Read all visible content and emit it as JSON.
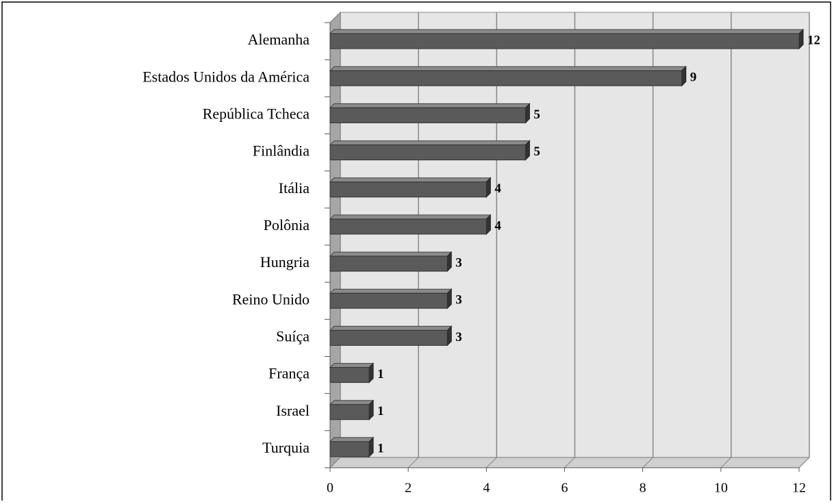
{
  "chart_data": {
    "type": "bar",
    "orientation": "horizontal",
    "categories": [
      "Alemanha",
      "Estados Unidos da América",
      "República Tcheca",
      "Finlândia",
      "Itália",
      "Polônia",
      "Hungria",
      "Reino Unido",
      "Suíça",
      "França",
      "Israel",
      "Turquia"
    ],
    "values": [
      12,
      9,
      5,
      5,
      4,
      4,
      3,
      3,
      3,
      1,
      1,
      1
    ],
    "color": "#5a5a5a",
    "xlim": [
      0,
      12
    ],
    "xticks": [
      0,
      2,
      4,
      6,
      8,
      10,
      12
    ],
    "grid": true
  }
}
